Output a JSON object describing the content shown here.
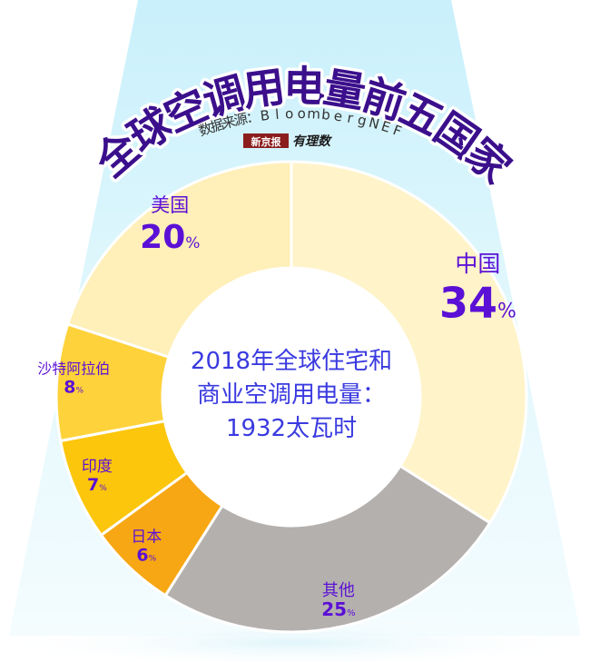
{
  "title": "全球空调用电量前五国家",
  "source": "数据来源：BloombergNEF",
  "logo": {
    "brand": "新京报",
    "product": "有理数"
  },
  "center_text": [
    "2018年全球住宅和",
    "商业空调用电量：",
    "1932太瓦时"
  ],
  "colors": {
    "title": "#3b0f8c",
    "label": "#5b10d6",
    "center_text": "#3a3ae0",
    "background_beam": "#dff6fc"
  },
  "chart_data": {
    "type": "pie",
    "title": "全球空调用电量前五国家",
    "subtitle": "2018年全球住宅和商业空调用电量：1932太瓦时",
    "unit": "%",
    "slices": [
      {
        "label": "中国",
        "value": 34,
        "color": "#fff3c9"
      },
      {
        "label": "其他",
        "value": 25,
        "color": "#b4b0ae"
      },
      {
        "label": "日本",
        "value": 6,
        "color": "#f7a714"
      },
      {
        "label": "印度",
        "value": 7,
        "color": "#fbc60c"
      },
      {
        "label": "沙特阿拉伯",
        "value": 8,
        "color": "#fed23a"
      },
      {
        "label": "美国",
        "value": 20,
        "color": "#ffefb8"
      }
    ]
  }
}
